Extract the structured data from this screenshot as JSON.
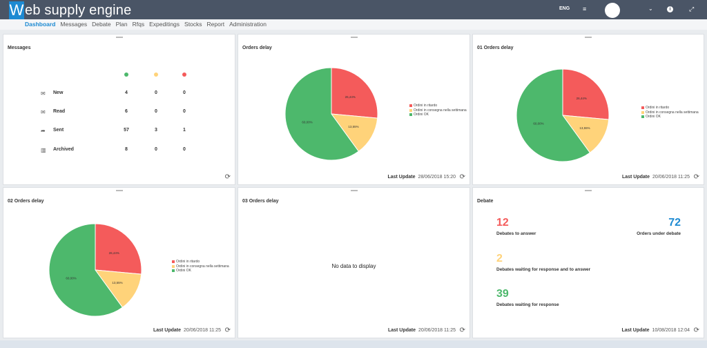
{
  "app": {
    "logo_letter": "W",
    "logo_rest": "eb supply engine"
  },
  "header": {
    "lang": "ENG",
    "menu_glyph": "≡",
    "chevron_glyph": "⌄",
    "info_glyph": "i",
    "expand_glyph": "⤢"
  },
  "nav": {
    "items": [
      "Dashboard",
      "Messages",
      "Debate",
      "Plan",
      "Rfqs",
      "Expeditings",
      "Stocks",
      "Report",
      "Administration"
    ]
  },
  "colors": {
    "red": "#f45b5b",
    "yellow": "#ffd37a",
    "green": "#4db86c",
    "blue": "#1d8ad2"
  },
  "messages": {
    "title": "Messages",
    "rows": [
      {
        "label": "New",
        "icon": "envelope-icon",
        "glyph": "✉",
        "green": "4",
        "yellow": "0",
        "red": "0"
      },
      {
        "label": "Read",
        "icon": "envelope-open-icon",
        "glyph": "✉",
        "green": "6",
        "yellow": "0",
        "red": "0"
      },
      {
        "label": "Sent",
        "icon": "sent-icon",
        "glyph": "➦",
        "green": "57",
        "yellow": "3",
        "red": "1"
      },
      {
        "label": "Archived",
        "icon": "trash-icon",
        "glyph": "▥",
        "green": "8",
        "yellow": "0",
        "red": "0"
      }
    ]
  },
  "legend": [
    "Ordini in ritardo",
    "Ordini in consegna nella settimana",
    "Ordini OK"
  ],
  "last_update_label": "Last Update",
  "refresh_glyph": "⟳",
  "panels": {
    "orders_delay": {
      "title": "Orders delay",
      "last_update": "28/06/2018 15:20"
    },
    "orders_delay_01": {
      "title": "01 Orders delay",
      "last_update": "20/06/2018 11:25"
    },
    "orders_delay_02": {
      "title": "02 Orders delay",
      "last_update": "20/06/2018 11:25"
    },
    "orders_delay_03": {
      "title": "03 Orders delay",
      "last_update": "20/06/2018 11:25",
      "no_data": "No data to display"
    },
    "debate": {
      "title": "Debate",
      "last_update": "10/08/2018 12:04",
      "to_answer": {
        "value": "12",
        "label": "Debates to answer"
      },
      "under_debate": {
        "value": "72",
        "label": "Orders under debate"
      },
      "waiting_both": {
        "value": "2",
        "label": "Debates waiting for response and to answer"
      },
      "waiting": {
        "value": "39",
        "label": "Debates waiting for response"
      }
    }
  },
  "chart_data": [
    {
      "type": "pie",
      "title": "Orders delay",
      "categories": [
        "Ordini in ritardo",
        "Ordini in consegna nella settimana",
        "Ordini OK"
      ],
      "values": [
        26.44,
        13.55,
        60.0
      ],
      "labels": [
        "26,44%",
        "13,55%",
        "60,00%"
      ]
    },
    {
      "type": "pie",
      "title": "01 Orders delay",
      "categories": [
        "Ordini in ritardo",
        "Ordini in consegna nella settimana",
        "Ordini OK"
      ],
      "values": [
        26.44,
        13.55,
        60.0
      ],
      "labels": [
        "26,44%",
        "13,55%",
        "60,00%"
      ]
    },
    {
      "type": "pie",
      "title": "02 Orders delay",
      "categories": [
        "Ordini in ritardo",
        "Ordini in consegna nella settimana",
        "Ordini OK"
      ],
      "values": [
        26.44,
        13.55,
        60.0
      ],
      "labels": [
        "26,44%",
        "13,55%",
        "60,00%"
      ]
    }
  ]
}
